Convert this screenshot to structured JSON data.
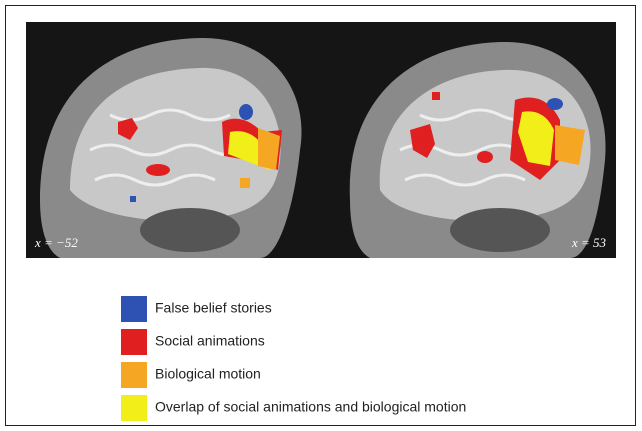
{
  "panels": [
    {
      "label": "x = −52"
    },
    {
      "label": "x = 53"
    }
  ],
  "legend": [
    {
      "label": "False belief stories",
      "color": "#2d52b4"
    },
    {
      "label": "Social animations",
      "color": "#e02020"
    },
    {
      "label": "Biological motion",
      "color": "#f5a623"
    },
    {
      "label": "Overlap of social animations and biological motion",
      "color": "#f2ee1a"
    }
  ]
}
